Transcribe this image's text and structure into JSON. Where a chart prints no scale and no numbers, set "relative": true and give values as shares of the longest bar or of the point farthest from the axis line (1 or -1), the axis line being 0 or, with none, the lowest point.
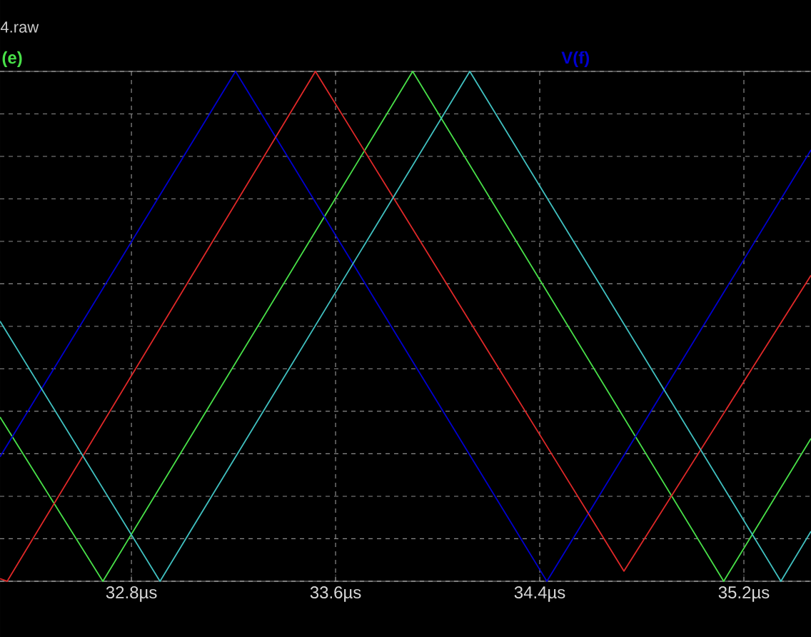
{
  "chart_data": {
    "type": "line",
    "title": "4.raw",
    "relative": true,
    "xlim": [
      32.285,
      35.463
    ],
    "xticks": [
      {
        "value": 32.8,
        "label": "32.8µs"
      },
      {
        "value": 33.6,
        "label": "33.6µs"
      },
      {
        "value": 34.4,
        "label": "34.4µs"
      },
      {
        "value": 35.2,
        "label": "35.2µs"
      }
    ],
    "grid": true,
    "legend": "top",
    "line_style": "solid",
    "marker": "none",
    "series": [
      {
        "name": "(e)",
        "color": "#48e048",
        "x": [
          32.285,
          32.688,
          33.902,
          35.121,
          35.463
        ],
        "values": [
          0.322,
          0,
          1,
          0,
          0.28
        ]
      },
      {
        "name": "V(f)",
        "color": "#0000d0",
        "x": [
          32.285,
          33.208,
          34.428,
          35.463
        ],
        "values": [
          0.244,
          1,
          0,
          0.846
        ]
      },
      {
        "color": "#e02828",
        "x": [
          32.285,
          32.313,
          33.521,
          34.73,
          35.463
        ],
        "values": [
          0.005,
          0,
          1,
          0.02,
          0.6
        ]
      },
      {
        "color": "#40c0c0",
        "x": [
          32.285,
          32.912,
          34.126,
          35.345,
          35.463
        ],
        "values": [
          0.51,
          0,
          1,
          0,
          0.098
        ]
      }
    ]
  }
}
